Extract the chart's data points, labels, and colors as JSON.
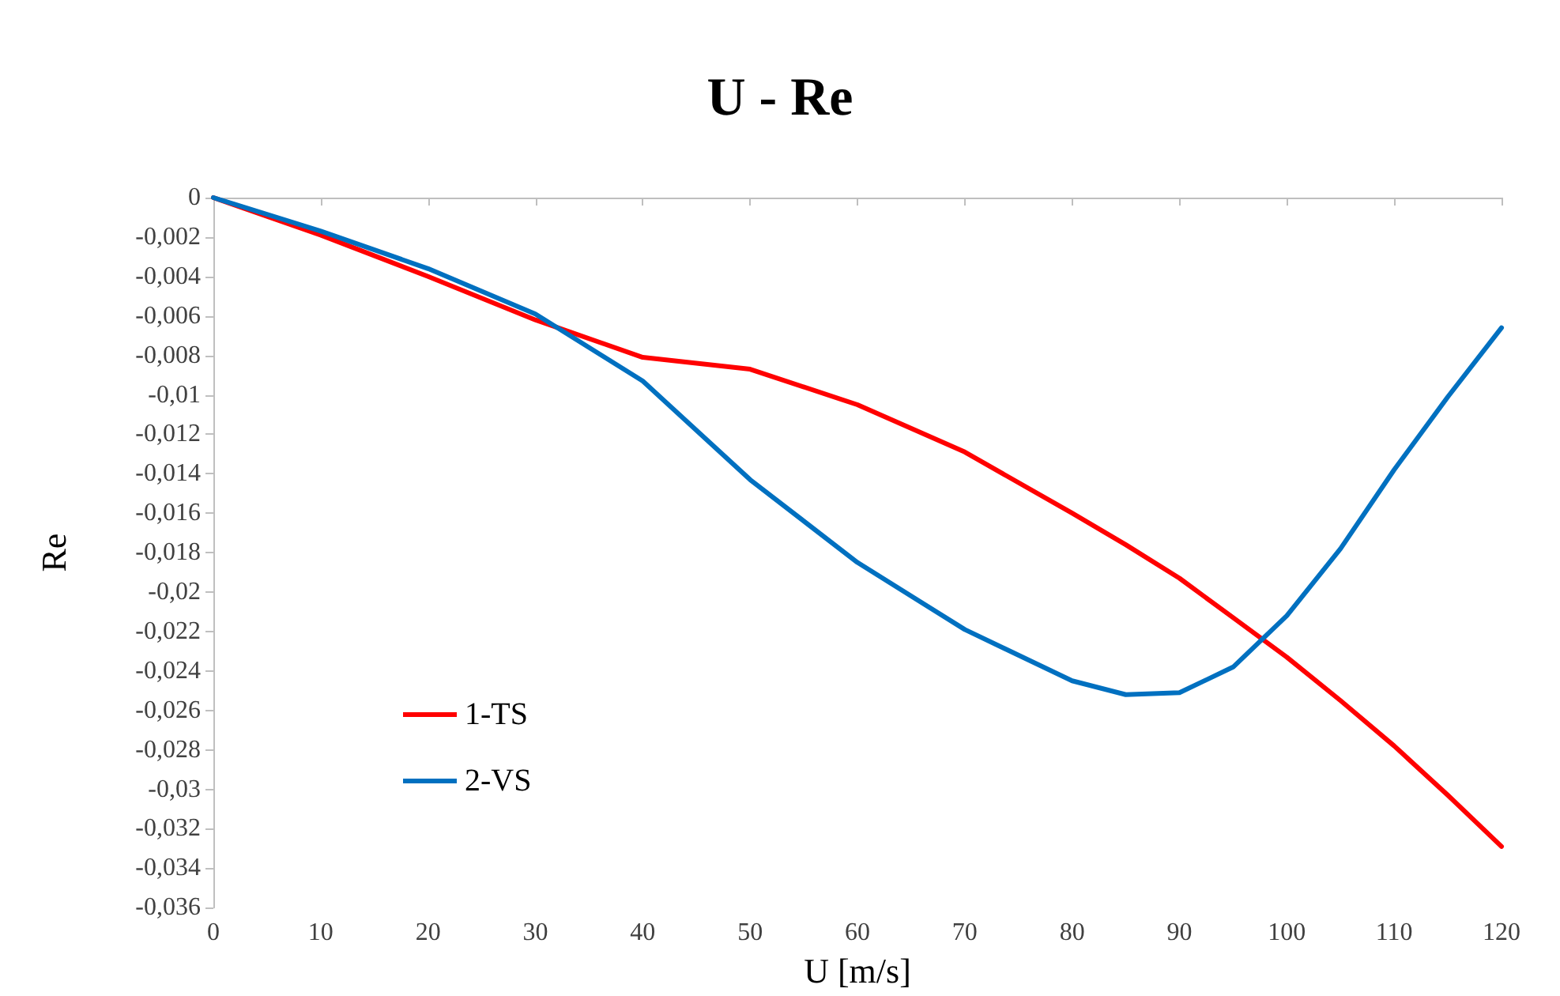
{
  "chart_data": {
    "type": "line",
    "title": "U - Re",
    "xlabel": "U [m/s]",
    "ylabel": "Re",
    "x": [
      0,
      10,
      20,
      30,
      40,
      50,
      60,
      70,
      80,
      85,
      90,
      95,
      100,
      105,
      110,
      115,
      120
    ],
    "series": [
      {
        "name": "1-TS",
        "color": "#ff0000",
        "values": [
          0,
          -0.0019,
          -0.004,
          -0.0062,
          -0.0081,
          -0.0087,
          -0.0105,
          -0.0129,
          -0.016,
          -0.0176,
          -0.0193,
          -0.0213,
          -0.0233,
          -0.0255,
          -0.0278,
          -0.0303,
          -0.0329
        ]
      },
      {
        "name": "2-VS",
        "color": "#0070c0",
        "values": [
          0,
          -0.0017,
          -0.0036,
          -0.0059,
          -0.0093,
          -0.0143,
          -0.0185,
          -0.0219,
          -0.0245,
          -0.0252,
          -0.0251,
          -0.0238,
          -0.0212,
          -0.0178,
          -0.0138,
          -0.0101,
          -0.0066
        ]
      }
    ],
    "xlim": [
      0,
      120
    ],
    "xticks": [
      0,
      10,
      20,
      30,
      40,
      50,
      60,
      70,
      80,
      90,
      100,
      110,
      120
    ],
    "ylim": [
      -0.036,
      0
    ],
    "yticks": [
      0,
      {
        "value": -0.002,
        "label": "-0,002"
      },
      {
        "value": -0.004,
        "label": "-0,004"
      },
      {
        "value": -0.006,
        "label": "-0,006"
      },
      {
        "value": -0.008,
        "label": "-0,008"
      },
      {
        "value": -0.01,
        "label": "-0,01"
      },
      {
        "value": -0.012,
        "label": "-0,012"
      },
      {
        "value": -0.014,
        "label": "-0,014"
      },
      {
        "value": -0.016,
        "label": "-0,016"
      },
      {
        "value": -0.018,
        "label": "-0,018"
      },
      {
        "value": -0.02,
        "label": "-0,02"
      },
      {
        "value": -0.022,
        "label": "-0,022"
      },
      {
        "value": -0.024,
        "label": "-0,024"
      },
      {
        "value": -0.026,
        "label": "-0,026"
      },
      {
        "value": -0.028,
        "label": "-0,028"
      },
      {
        "value": -0.03,
        "label": "-0,03"
      },
      {
        "value": -0.032,
        "label": "-0,032"
      },
      {
        "value": -0.034,
        "label": "-0,034"
      },
      {
        "value": -0.036,
        "label": "-0,036"
      }
    ],
    "grid": false,
    "legend": "bottom left",
    "marker": "none",
    "line_style": "solid"
  }
}
